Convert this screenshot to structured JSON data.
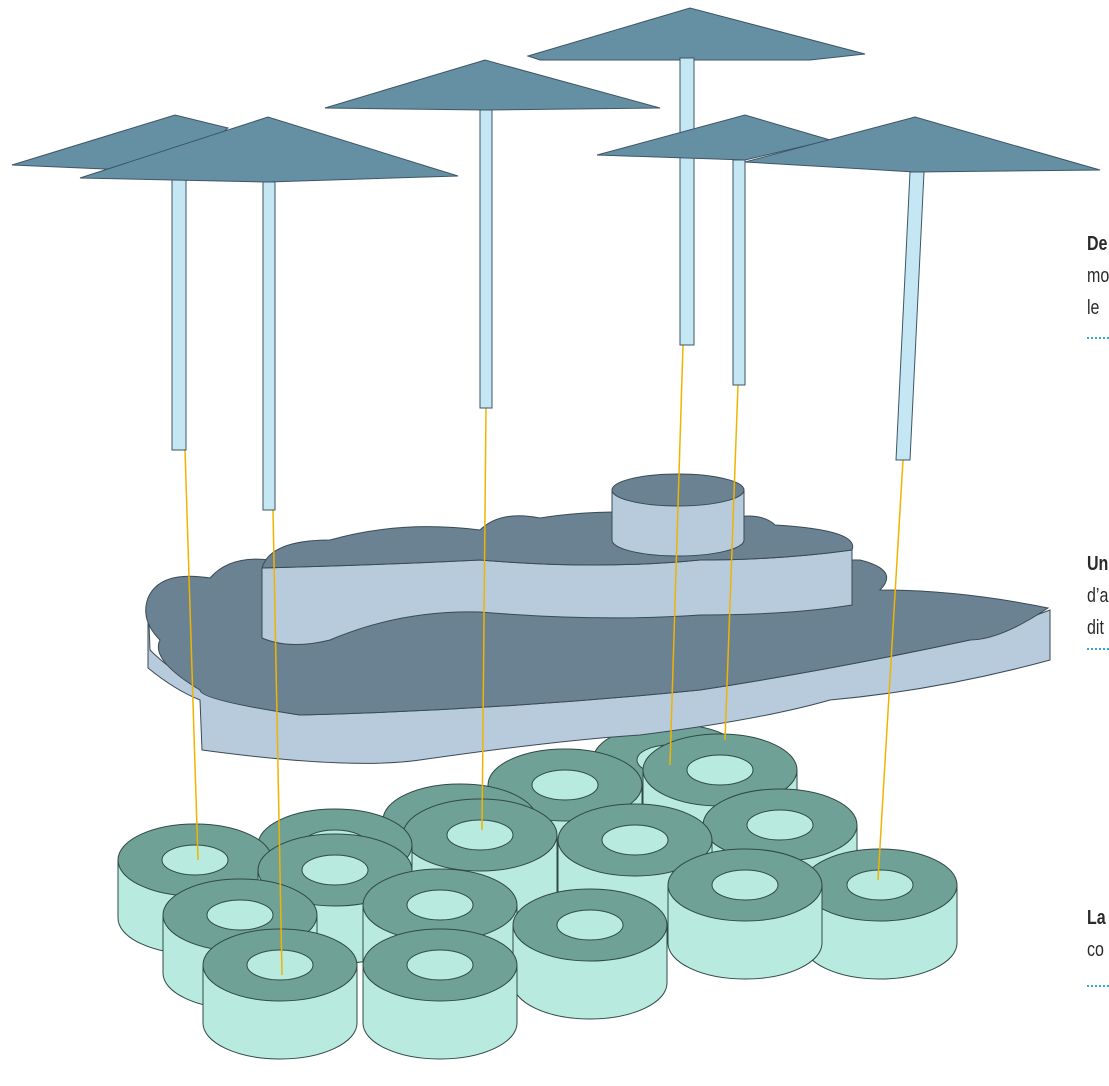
{
  "annotations": [
    {
      "lines": [
        "De",
        "mo",
        "le"
      ]
    },
    {
      "lines": [
        "Un",
        "d’a",
        "dit"
      ]
    },
    {
      "lines": [
        "La",
        "co"
      ]
    }
  ]
}
